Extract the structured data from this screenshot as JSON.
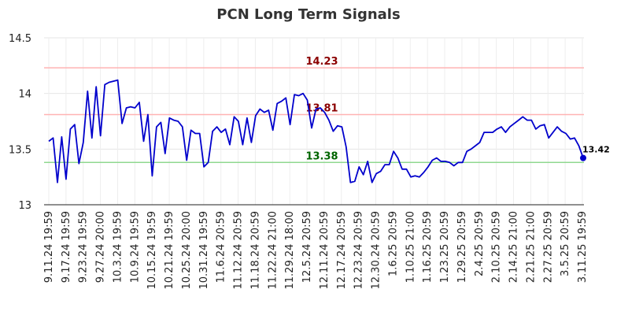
{
  "chart_data": {
    "type": "line",
    "title": "PCN Long Term Signals",
    "ylim": [
      13,
      14.5
    ],
    "yticks": [
      13,
      13.5,
      14,
      14.5
    ],
    "ytick_labels": [
      "13",
      "13.5",
      "14",
      "14.5"
    ],
    "xtick_labels": [
      "9.11.24 19:59",
      "9.17.24 19:59",
      "9.23.24 19:59",
      "9.27.24 20:00",
      "10.3.24 19:59",
      "10.9.24 19:59",
      "10.15.24 19:59",
      "10.21.24 19:59",
      "10.25.24 20:00",
      "10.31.24 19:59",
      "11.6.24 20:59",
      "11.12.24 20:59",
      "11.18.24 20:59",
      "11.22.24 21:00",
      "11.29.24 18:00",
      "12.5.24 20:59",
      "12.11.24 20:59",
      "12.17.24 20:59",
      "12.23.24 20:59",
      "12.30.24 20:59",
      "1.6.25 20:59",
      "1.10.25 21:00",
      "1.16.25 20:59",
      "1.23.25 20:59",
      "1.29.25 20:59",
      "2.4.25 20:59",
      "2.10.25 20:59",
      "2.14.25 21:00",
      "2.21.25 21:00",
      "2.27.25 20:59",
      "3.5.25 20:59",
      "3.11.25 19:59"
    ],
    "reference_lines": [
      {
        "value": 14.23,
        "label": "14.23",
        "color": "#ffb3b3",
        "text_color": "#8b0000"
      },
      {
        "value": 13.81,
        "label": "13.81",
        "color": "#ffb3b3",
        "text_color": "#8b0000"
      },
      {
        "value": 13.38,
        "label": "13.38",
        "color": "#90d890",
        "text_color": "#006400"
      }
    ],
    "last_value_label": "13.42",
    "line_color": "#0000cc",
    "series": [
      {
        "values": [
          13.57,
          13.6,
          13.2,
          13.61,
          13.23,
          13.68,
          13.72,
          13.37,
          13.56,
          14.02,
          13.6,
          14.06,
          13.62,
          14.08,
          14.1,
          14.11,
          14.12,
          13.73,
          13.87,
          13.88,
          13.87,
          13.92,
          13.57,
          13.81,
          13.26,
          13.7,
          13.74,
          13.46,
          13.78,
          13.76,
          13.75,
          13.7,
          13.4,
          13.67,
          13.64,
          13.64,
          13.34,
          13.38,
          13.66,
          13.7,
          13.65,
          13.68,
          13.54,
          13.79,
          13.75,
          13.54,
          13.78,
          13.56,
          13.8,
          13.86,
          13.83,
          13.85,
          13.67,
          13.91,
          13.93,
          13.96,
          13.72,
          13.99,
          13.98,
          14.0,
          13.94,
          13.69,
          13.86,
          13.87,
          13.83,
          13.76,
          13.66,
          13.71,
          13.7,
          13.52,
          13.2,
          13.21,
          13.34,
          13.27,
          13.39,
          13.2,
          13.28,
          13.3,
          13.36,
          13.36,
          13.48,
          13.42,
          13.32,
          13.32,
          13.25,
          13.26,
          13.25,
          13.29,
          13.34,
          13.4,
          13.42,
          13.39,
          13.39,
          13.38,
          13.35,
          13.38,
          13.38,
          13.48,
          13.5,
          13.53,
          13.56,
          13.65,
          13.65,
          13.65,
          13.68,
          13.7,
          13.65,
          13.7,
          13.73,
          13.76,
          13.79,
          13.76,
          13.76,
          13.68,
          13.71,
          13.72,
          13.6,
          13.65,
          13.7,
          13.66,
          13.64,
          13.59,
          13.6,
          13.53,
          13.42
        ]
      }
    ]
  }
}
